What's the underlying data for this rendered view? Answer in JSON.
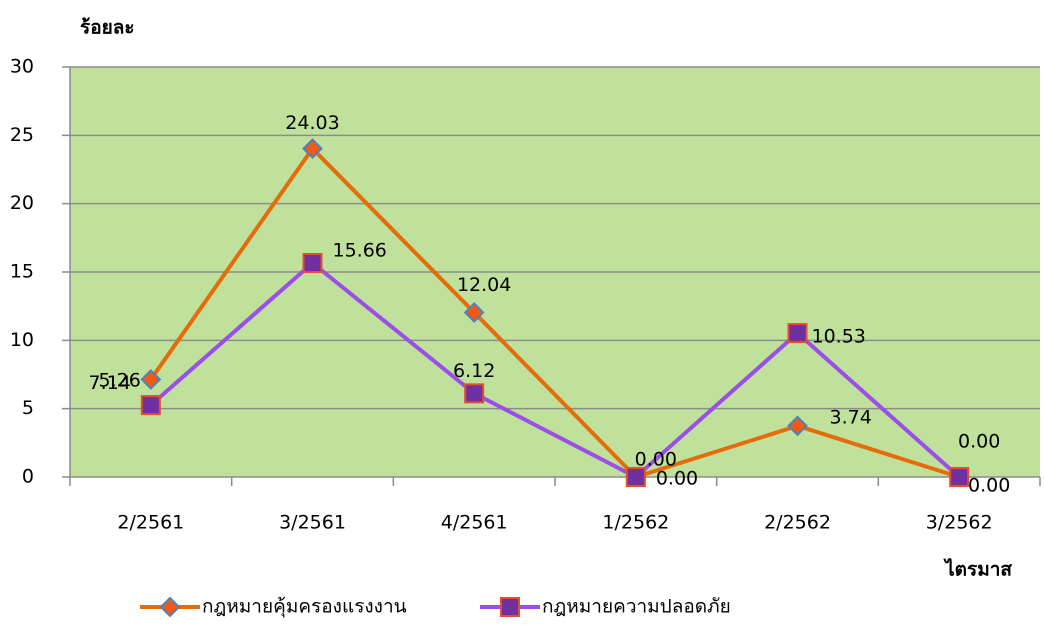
{
  "chart_data": {
    "type": "line",
    "y_label": "ร้อยละ",
    "x_label": "ไตรมาส",
    "categories": [
      "2/2561",
      "3/2561",
      "4/2561",
      "1/2562",
      "2/2562",
      "3/2562"
    ],
    "series": [
      {
        "name": "กฎหมายคุ้มครองแรงงาน",
        "color": "#e46c0a",
        "marker": "diamond",
        "marker_color": "#f05a14",
        "marker_edge": "#4f81bd",
        "values": [
          7.14,
          24.03,
          12.04,
          0,
          3.74,
          0
        ],
        "value_labels": [
          "7.14",
          "24.03",
          "12.04",
          "0.00",
          "3.74",
          "0.00"
        ]
      },
      {
        "name": "กฎหมายความปลอดภัย",
        "color": "#9b4ee8",
        "marker": "square",
        "marker_color": "#7030a0",
        "marker_edge": "#e0502a",
        "values": [
          5.26,
          15.66,
          6.12,
          0,
          10.53,
          0
        ],
        "value_labels": [
          "5.26",
          "15.66",
          "6.12",
          "0.00",
          "10.53",
          "0.00"
        ]
      }
    ],
    "ylim": [
      0,
      30
    ],
    "yticks": [
      0,
      5,
      10,
      15,
      20,
      25,
      30
    ],
    "grid": true,
    "legend": "bottom",
    "background": "#c0e19b"
  }
}
